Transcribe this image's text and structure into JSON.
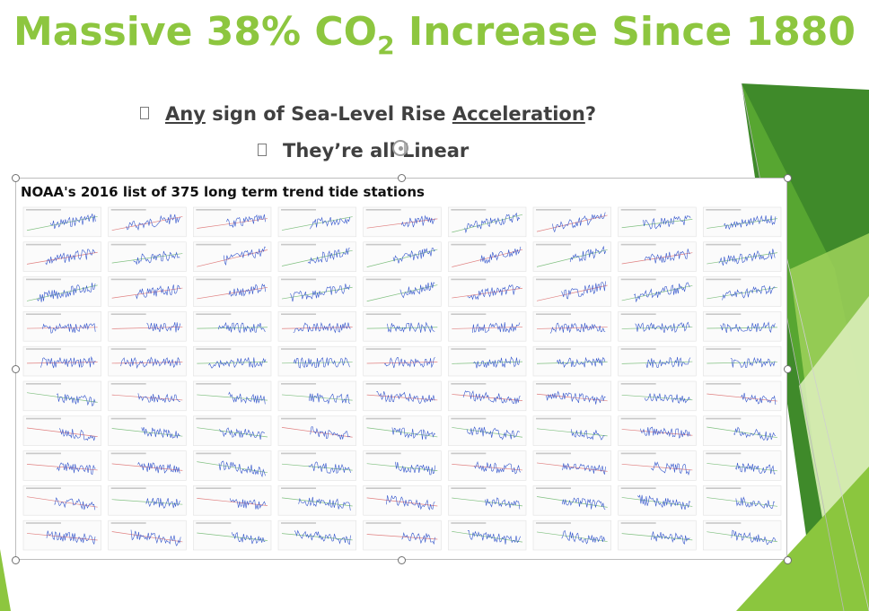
{
  "slide": {
    "title_pre": "Massive 38% CO",
    "title_sub": "2",
    "title_post": " Increase Since 1880",
    "bullets": [
      {
        "marker": "square-bullet-icon",
        "parts": [
          "Any",
          " sign of Sea-Level Rise ",
          "Acceleration",
          "?"
        ]
      },
      {
        "marker": "square-bullet-icon",
        "text": "They’re all Linear"
      }
    ]
  },
  "picture": {
    "title": "NOAA's 2016 list of 375 long term trend tide stations",
    "grid_rows": 10,
    "grid_cols": 9
  },
  "colors": {
    "title_green": "#8dc63f",
    "text_gray": "#404040",
    "series_blue": "#3355cc",
    "trend_red": "#e08080",
    "trend_green": "#80c080",
    "accent_dark_green": "#4f9a2e",
    "accent_light_green": "#d5e8b0"
  }
}
